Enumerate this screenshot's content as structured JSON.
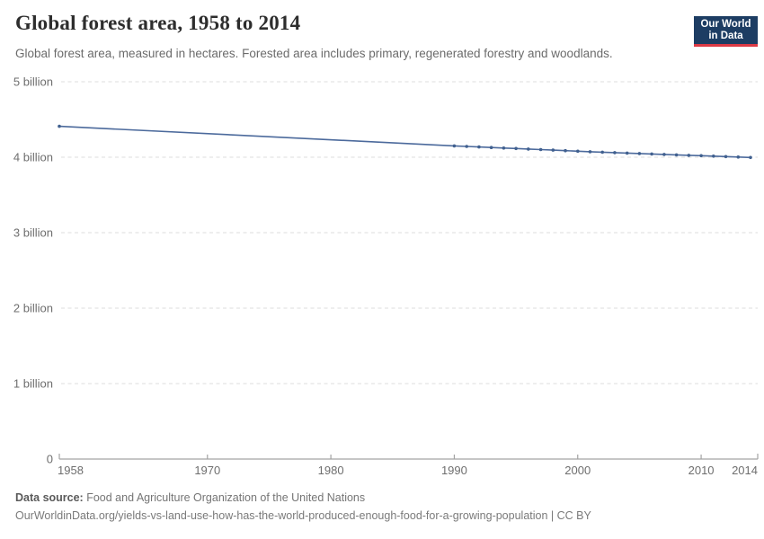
{
  "header": {
    "title": "Global forest area, 1958 to 2014",
    "subtitle": "Global forest area, measured in hectares. Forested area includes primary, regenerated forestry and woodlands."
  },
  "logo": {
    "line1": "Our World",
    "line2": "in Data",
    "bg_color": "#1d3d63",
    "accent_color": "#dc3a45"
  },
  "footer": {
    "source_label": "Data source:",
    "source_text": "Food and Agriculture Organization of the United Nations",
    "citation": "OurWorldinData.org/yields-vs-land-use-how-has-the-world-produced-enough-food-for-a-growing-population | CC BY"
  },
  "chart_data": {
    "type": "line",
    "title": "Global forest area, 1958 to 2014",
    "unit": "hectares",
    "xlabel": "",
    "ylabel": "",
    "xlim": [
      1958,
      2014
    ],
    "ylim_billion_hectares": [
      0,
      5
    ],
    "grid": "horizontal-dashed",
    "legend": "none",
    "line_color": "#4C6A9C",
    "marker_color": "#40608F",
    "axis_color": "#a3a3a3",
    "grid_color": "#dcdcdc",
    "tick_label_color": "#6e6e6e",
    "yticks": [
      {
        "value": 0,
        "label": "0"
      },
      {
        "value": 1,
        "label": "1 billion"
      },
      {
        "value": 2,
        "label": "2 billion"
      },
      {
        "value": 3,
        "label": "3 billion"
      },
      {
        "value": 4,
        "label": "4 billion"
      },
      {
        "value": 5,
        "label": "5 billion"
      }
    ],
    "xticks": [
      1958,
      1970,
      1980,
      1990,
      2000,
      2010,
      2014
    ],
    "series": [
      {
        "name": "Global forest area",
        "points": [
          {
            "year": 1958,
            "billion_hectares": 4.41
          },
          {
            "year": 1990,
            "billion_hectares": 4.15
          },
          {
            "year": 1991,
            "billion_hectares": 4.143
          },
          {
            "year": 1992,
            "billion_hectares": 4.136
          },
          {
            "year": 1993,
            "billion_hectares": 4.129
          },
          {
            "year": 1994,
            "billion_hectares": 4.122
          },
          {
            "year": 1995,
            "billion_hectares": 4.115
          },
          {
            "year": 1996,
            "billion_hectares": 4.108
          },
          {
            "year": 1997,
            "billion_hectares": 4.101
          },
          {
            "year": 1998,
            "billion_hectares": 4.094
          },
          {
            "year": 1999,
            "billion_hectares": 4.087
          },
          {
            "year": 2000,
            "billion_hectares": 4.08
          },
          {
            "year": 2001,
            "billion_hectares": 4.073
          },
          {
            "year": 2002,
            "billion_hectares": 4.067
          },
          {
            "year": 2003,
            "billion_hectares": 4.061
          },
          {
            "year": 2004,
            "billion_hectares": 4.055
          },
          {
            "year": 2005,
            "billion_hectares": 4.049
          },
          {
            "year": 2006,
            "billion_hectares": 4.043
          },
          {
            "year": 2007,
            "billion_hectares": 4.037
          },
          {
            "year": 2008,
            "billion_hectares": 4.031
          },
          {
            "year": 2009,
            "billion_hectares": 4.025
          },
          {
            "year": 2010,
            "billion_hectares": 4.02
          },
          {
            "year": 2011,
            "billion_hectares": 4.014
          },
          {
            "year": 2012,
            "billion_hectares": 4.008
          },
          {
            "year": 2013,
            "billion_hectares": 4.002
          },
          {
            "year": 2014,
            "billion_hectares": 3.996
          }
        ]
      }
    ]
  }
}
